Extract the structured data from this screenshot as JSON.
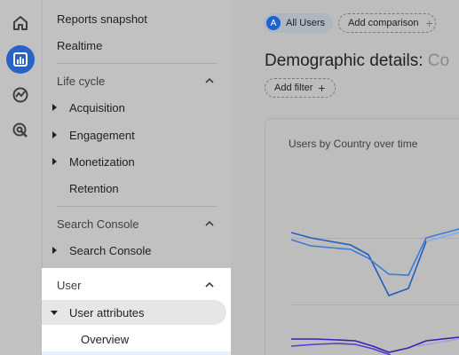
{
  "rail": {
    "items": [
      {
        "icon": "home-icon",
        "active": false
      },
      {
        "icon": "reports-icon",
        "active": true
      },
      {
        "icon": "explore-icon",
        "active": false
      },
      {
        "icon": "advertising-icon",
        "active": false
      }
    ]
  },
  "nav": {
    "reports_snapshot": "Reports snapshot",
    "realtime": "Realtime",
    "lifecycle": {
      "header": "Life cycle",
      "items": [
        "Acquisition",
        "Engagement",
        "Monetization",
        "Retention"
      ]
    },
    "search_console": {
      "header": "Search Console",
      "items": [
        "Search Console"
      ]
    },
    "user": {
      "header": "User",
      "user_attributes": "User attributes",
      "overview": "Overview"
    }
  },
  "main": {
    "segment_chip": {
      "avatar": "A",
      "label": "All Users"
    },
    "compare_chip": {
      "label": "Add comparison",
      "icon": "plus-icon"
    },
    "title": "Demographic details:",
    "title_overflow": "Co",
    "filter_chip": {
      "label": "Add filter",
      "icon": "plus-icon"
    },
    "card_title": "Users by Country over time"
  },
  "colors": {
    "accent": "#2a63c8",
    "series_blue_dark": "#1f5fbf",
    "series_blue_light": "#4a8fe0",
    "series_purple": "#3b1fb0",
    "series_purple_light": "#6a4fe0"
  }
}
